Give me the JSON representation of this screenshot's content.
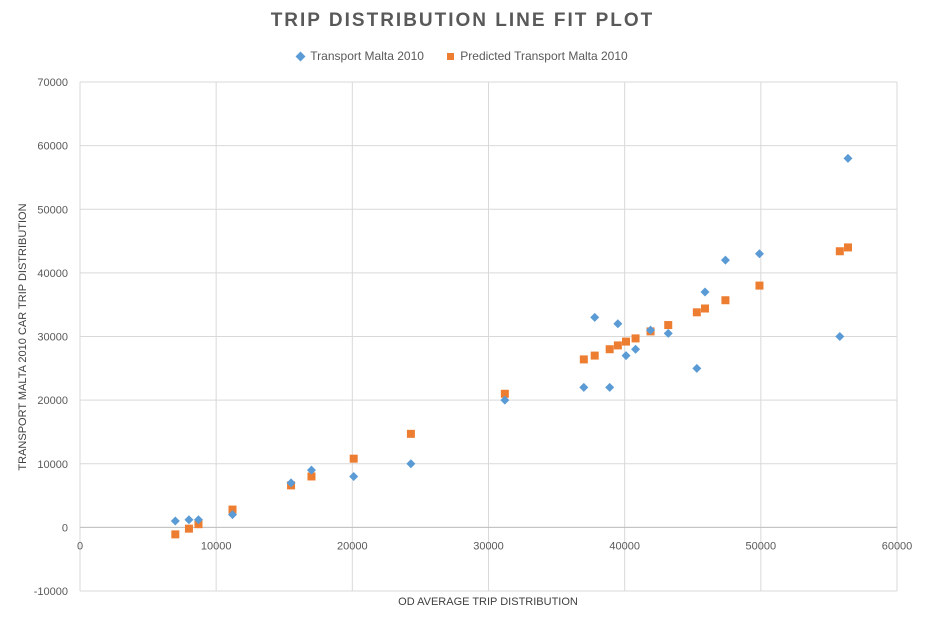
{
  "chart_data": {
    "type": "scatter",
    "title": "TRIP DISTRIBUTION LINE FIT  PLOT",
    "xlabel": "OD AVERAGE TRIP DISTRIBUTION",
    "ylabel": "TRANSPORT MALTA 2010 CAR TRIP DISTRIBUTION",
    "xlim": [
      0,
      60000
    ],
    "ylim": [
      -10000,
      70000
    ],
    "x_ticks": [
      "0",
      "10000",
      "20000",
      "30000",
      "40000",
      "50000",
      "60000"
    ],
    "y_ticks": [
      "-10000",
      "0",
      "10000",
      "20000",
      "30000",
      "40000",
      "50000",
      "60000",
      "70000"
    ],
    "grid": true,
    "legend_position": "top",
    "series": [
      {
        "name": "Transport Malta 2010",
        "marker": "diamond",
        "color": "#5b9bd5",
        "points": [
          [
            7000,
            1000
          ],
          [
            8000,
            1200
          ],
          [
            8700,
            1200
          ],
          [
            11200,
            2000
          ],
          [
            15500,
            7000
          ],
          [
            17000,
            9000
          ],
          [
            20100,
            8000
          ],
          [
            24300,
            10000
          ],
          [
            31200,
            20000
          ],
          [
            37000,
            22000
          ],
          [
            37800,
            33000
          ],
          [
            38900,
            22000
          ],
          [
            39500,
            32000
          ],
          [
            40100,
            27000
          ],
          [
            40800,
            28000
          ],
          [
            41900,
            31000
          ],
          [
            43200,
            30500
          ],
          [
            45300,
            25000
          ],
          [
            45900,
            37000
          ],
          [
            47400,
            42000
          ],
          [
            49900,
            43000
          ],
          [
            55800,
            30000
          ],
          [
            56400,
            58000
          ]
        ]
      },
      {
        "name": "Predicted Transport Malta 2010",
        "marker": "square",
        "color": "#ed7d31",
        "points": [
          [
            7000,
            -1100
          ],
          [
            8000,
            -200
          ],
          [
            8700,
            500
          ],
          [
            11200,
            2800
          ],
          [
            15500,
            6600
          ],
          [
            17000,
            8000
          ],
          [
            20100,
            10800
          ],
          [
            24300,
            14700
          ],
          [
            31200,
            21000
          ],
          [
            37000,
            26400
          ],
          [
            37800,
            27000
          ],
          [
            38900,
            28000
          ],
          [
            39500,
            28600
          ],
          [
            40100,
            29200
          ],
          [
            40800,
            29700
          ],
          [
            41900,
            30800
          ],
          [
            43200,
            31800
          ],
          [
            45300,
            33800
          ],
          [
            45900,
            34400
          ],
          [
            47400,
            35700
          ],
          [
            49900,
            38000
          ],
          [
            55800,
            43400
          ],
          [
            56400,
            44000
          ]
        ]
      }
    ]
  }
}
